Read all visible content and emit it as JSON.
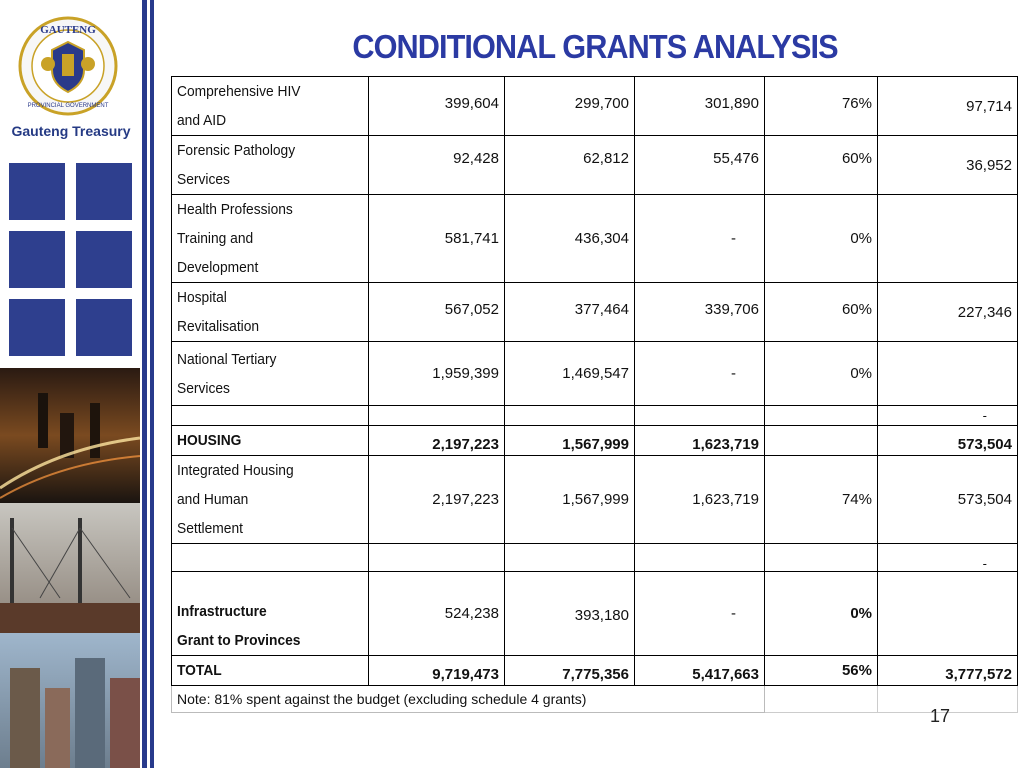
{
  "title": "CONDITIONAL GRANTS ANALYSIS",
  "brand": "Gauteng Treasury",
  "logo": {
    "arc_text": "GAUTENG",
    "sub_text": "PROVINCIAL GOVERNMENT"
  },
  "colors": {
    "title": "#2b3aa3",
    "brand": "#253a84",
    "tiles": "#2e3f8e"
  },
  "rows": [
    {
      "label": "Comprehensive HIV and AID",
      "c1": "399,604",
      "c2": "299,700",
      "c3": "301,890",
      "pct": "76%",
      "c5": "97,714"
    },
    {
      "label": "Forensic Pathology Services",
      "c1": "92,428",
      "c2": "62,812",
      "c3": "55,476",
      "pct": "60%",
      "c5": "36,952"
    },
    {
      "label": "Health Professions Training and Development",
      "c1": "581,741",
      "c2": "436,304",
      "c3": "-",
      "pct": "0%",
      "c5": ""
    },
    {
      "label": "Hospital Revitalisation",
      "c1": "567,052",
      "c2": "377,464",
      "c3": "339,706",
      "pct": "60%",
      "c5": "227,346"
    },
    {
      "label": "National Tertiary Services",
      "c1": "1,959,399",
      "c2": "1,469,547",
      "c3": "-",
      "pct": "0%",
      "c5": ""
    },
    {
      "label": "",
      "c1": "",
      "c2": "",
      "c3": "",
      "pct": "",
      "c5": "-"
    },
    {
      "label": "HOUSING",
      "c1": "2,197,223",
      "c2": "1,567,999",
      "c3": "1,623,719",
      "pct": "",
      "c5": "573,504"
    },
    {
      "label": "Integrated Housing and Human Settlement",
      "c1": "2,197,223",
      "c2": "1,567,999",
      "c3": "1,623,719",
      "pct": "74%",
      "c5": "573,504"
    },
    {
      "label": "",
      "c1": "",
      "c2": "",
      "c3": "",
      "pct": "",
      "c5": "-"
    },
    {
      "label": "Infrastructure Grant to Provinces",
      "c1": "524,238",
      "c2": "393,180",
      "c3": "-",
      "pct": "0%",
      "c5": ""
    },
    {
      "label": "TOTAL",
      "c1": "9,719,473",
      "c2": "7,775,356",
      "c3": "5,417,663",
      "pct": "56%",
      "c5": "3,777,572"
    }
  ],
  "label_lines": {
    "r0": [
      "Comprehensive HIV",
      "and AID"
    ],
    "r1": [
      "Forensic Pathology",
      "Services"
    ],
    "r2": [
      "Health Professions",
      "Training and",
      "Development"
    ],
    "r3": [
      "Hospital",
      "Revitalisation"
    ],
    "r4": [
      "National Tertiary",
      "Services"
    ],
    "r7": [
      "Integrated Housing",
      "and Human",
      "Settlement"
    ],
    "r9": [
      "Infrastructure",
      "Grant to Provinces"
    ]
  },
  "note": "Note: 81% spent against the budget (excluding schedule 4 grants)",
  "page_number": "17"
}
